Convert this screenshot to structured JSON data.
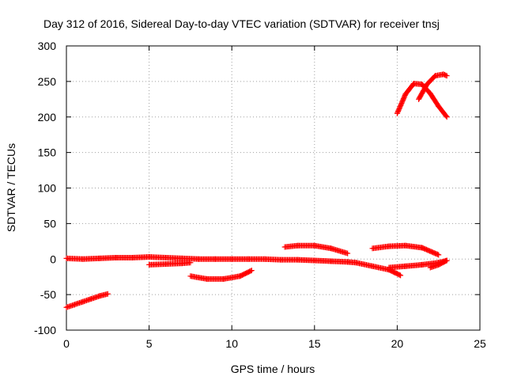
{
  "chart_data": {
    "type": "scatter",
    "title": "Day 312 of 2016, Sidereal Day-to-day VTEC variation (SDTVAR) for receiver tnsj",
    "xlabel": "GPS time / hours",
    "ylabel": "SDTVAR / TECUs",
    "xlim": [
      0,
      25
    ],
    "ylim": [
      -100,
      300
    ],
    "xticks": [
      "0",
      "5",
      "10",
      "15",
      "20",
      "25"
    ],
    "yticks": [
      "-100",
      "-50",
      "0",
      "50",
      "100",
      "150",
      "200",
      "250",
      "300"
    ],
    "grid": true,
    "marker": "plus",
    "color": "#ff0000",
    "series": [
      {
        "x": [
          0.0,
          0.5,
          1.0,
          1.5,
          2.0,
          2.5
        ],
        "y": [
          -68,
          -64,
          -60,
          -56,
          -52,
          -49
        ]
      },
      {
        "x": [
          0.0,
          1.0,
          2.0,
          3.0,
          4.0,
          5.0,
          6.0,
          7.0,
          8.0,
          9.0,
          10.0,
          11.0,
          12.0,
          13.0,
          14.0,
          15.0,
          16.0,
          17.0,
          17.5
        ],
        "y": [
          1,
          0,
          1,
          2,
          2,
          3,
          2,
          1,
          0,
          0,
          0,
          0,
          0,
          -1,
          -1,
          -2,
          -3,
          -4,
          -5
        ]
      },
      {
        "x": [
          5.0,
          6.0,
          7.0,
          7.5
        ],
        "y": [
          -8,
          -7,
          -6,
          -5
        ]
      },
      {
        "x": [
          7.5,
          8.5,
          9.5,
          10.5,
          11.2
        ],
        "y": [
          -24,
          -28,
          -28,
          -24,
          -16
        ]
      },
      {
        "x": [
          13.2,
          14.0,
          15.0,
          16.0,
          17.0
        ],
        "y": [
          17,
          19,
          19,
          15,
          8
        ]
      },
      {
        "x": [
          17.5,
          18.5,
          19.5,
          20.2
        ],
        "y": [
          -5,
          -10,
          -15,
          -23
        ]
      },
      {
        "x": [
          18.5,
          19.5,
          20.5,
          21.5,
          22.5
        ],
        "y": [
          15,
          18,
          19,
          16,
          6
        ]
      },
      {
        "x": [
          19.5,
          20.5,
          21.5,
          22.5,
          23.0
        ],
        "y": [
          -12,
          -10,
          -8,
          -5,
          -2
        ]
      },
      {
        "x": [
          20.0,
          20.5,
          21.0,
          21.5,
          22.0,
          22.5,
          23.0
        ],
        "y": [
          205,
          232,
          247,
          246,
          233,
          215,
          200
        ]
      },
      {
        "x": [
          21.3,
          21.8,
          22.3,
          22.8,
          23.0
        ],
        "y": [
          225,
          246,
          258,
          260,
          258
        ]
      },
      {
        "x": [
          22.0,
          22.5,
          23.0
        ],
        "y": [
          -12,
          -8,
          -2
        ]
      }
    ]
  }
}
